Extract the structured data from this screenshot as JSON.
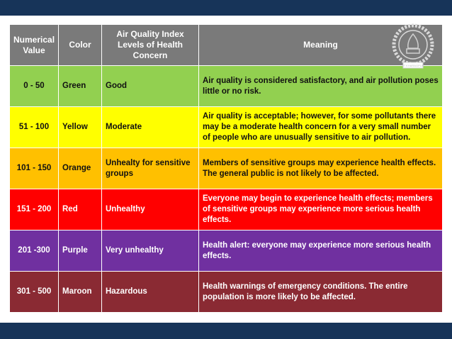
{
  "header": {
    "numerical_value": "Numerical Value",
    "color": "Color",
    "levels": "Air Quality Index Levels of Health Concern",
    "meaning": "Meaning"
  },
  "rows": [
    {
      "value": "0 - 50",
      "color": "Green",
      "level": "Good",
      "meaning": "Air quality is considered satisfactory, and air pollution poses little or no risk.",
      "bg": "#92d050"
    },
    {
      "value": "51 - 100",
      "color": "Yellow",
      "level": "Moderate",
      "meaning": "Air quality is acceptable; however, for some pollutants there may be a moderate health concern for a very small number of people who are unusually sensitive to air pollution.",
      "bg": "#ffff00"
    },
    {
      "value": "101 - 150",
      "color": "Orange",
      "level": "Unhealty for sensitive groups",
      "meaning": "Members of sensitive groups may experience health effects. The general public is not likely to be affected.",
      "bg": "#ffc000"
    },
    {
      "value": "151 - 200",
      "color": "Red",
      "level": "Unhealthy",
      "meaning": "Everyone may begin to experience health effects; members of sensitive groups may experience more serious health effects.",
      "bg": "#ff0000"
    },
    {
      "value": "201 -300",
      "color": "Purple",
      "level": "Very unhealthy",
      "meaning": "Health alert: everyone may experience more serious health effects.",
      "bg": "#7030a0"
    },
    {
      "value": "301 - 500",
      "color": "Maroon",
      "level": "Hazardous",
      "meaning": "Health warnings of emergency conditions. The entire population is more likely to be affected.",
      "bg": "#8a2a33"
    }
  ],
  "colors": {
    "band": "#173459",
    "header_bg": "#7a7a7a"
  },
  "logo": {
    "icon": "institute-seal-icon",
    "text": "IIT KHARAGPUR"
  }
}
